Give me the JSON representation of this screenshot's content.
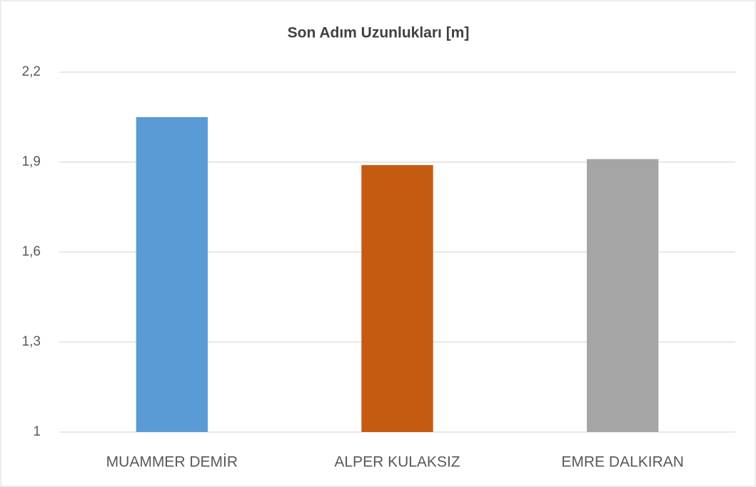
{
  "chart_data": {
    "type": "bar",
    "title": "Son Adım Uzunlukları [m]",
    "categories": [
      "MUAMMER DEMİR",
      "ALPER KULAKSIZ",
      "EMRE DALKIRAN"
    ],
    "values": [
      2.05,
      1.89,
      1.91
    ],
    "colors": [
      "#5b9bd5",
      "#c55a11",
      "#a5a5a5"
    ],
    "ylim": [
      1,
      2.2
    ],
    "yticks": [
      1,
      {
        "value": 1.3,
        "label": "1,3"
      },
      {
        "value": 1.6,
        "label": "1,6"
      },
      {
        "value": 1.9,
        "label": "1,9"
      },
      {
        "value": 2.2,
        "label": "2,2"
      }
    ],
    "grid": true
  }
}
